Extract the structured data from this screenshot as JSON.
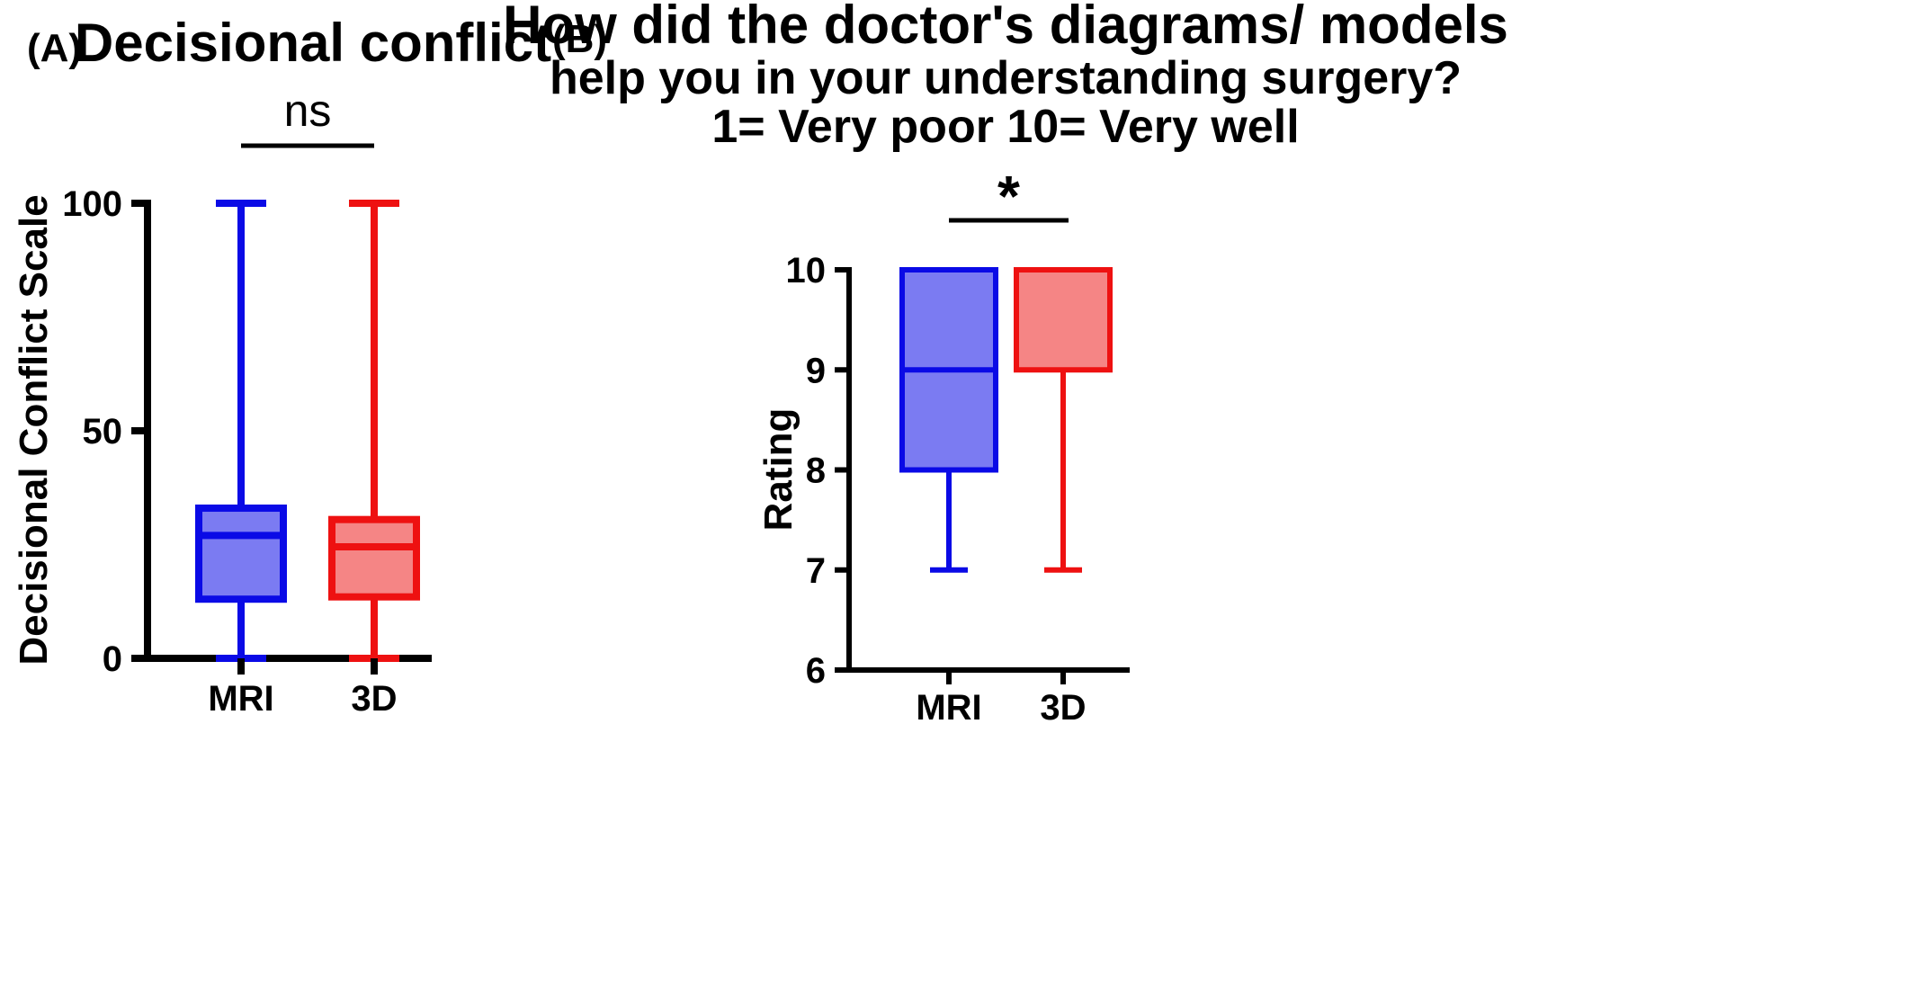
{
  "colors": {
    "mri_stroke": "#0a0ae6",
    "mri_fill": "#7b7bf2",
    "threed_stroke": "#ee1111",
    "threed_fill": "#f58585",
    "axis": "#000000"
  },
  "chart_data": [
    {
      "type": "box",
      "panel_label": "(A)",
      "title": "Decisional conflict",
      "subtitle": [],
      "ylabel": "Decisional Conflict Scale",
      "xlabel": "",
      "categories": [
        "MRI",
        "3D"
      ],
      "ylim": [
        0,
        100
      ],
      "yticks": [
        0,
        50,
        100
      ],
      "ytick_labels": [
        "0",
        "50",
        "100"
      ],
      "boxes": [
        {
          "category": "MRI",
          "min": 0,
          "q1": 13,
          "median": 27,
          "q3": 33,
          "max": 100,
          "color": "mri"
        },
        {
          "category": "3D",
          "min": 0,
          "q1": 13.5,
          "median": 24.5,
          "q3": 30.5,
          "max": 100,
          "color": "threed"
        }
      ],
      "significance": {
        "label": "ns",
        "between": [
          "MRI",
          "3D"
        ]
      },
      "grid": false,
      "legend": "none"
    },
    {
      "type": "box",
      "panel_label": "(B)",
      "title": "How did the doctor's diagrams/ models",
      "subtitle": [
        "help you in your understanding surgery?",
        "1= Very poor 10= Very well"
      ],
      "ylabel": "Rating",
      "xlabel": "",
      "categories": [
        "MRI",
        "3D"
      ],
      "ylim": [
        6,
        10
      ],
      "yticks": [
        6,
        7,
        8,
        9,
        10
      ],
      "ytick_labels": [
        "6",
        "7",
        "8",
        "9",
        "10"
      ],
      "boxes": [
        {
          "category": "MRI",
          "min": 7,
          "q1": 8,
          "median": 9,
          "q3": 10,
          "max": 10,
          "color": "mri"
        },
        {
          "category": "3D",
          "min": 7,
          "q1": 9,
          "median": 10,
          "q3": 10,
          "max": 10,
          "color": "threed"
        }
      ],
      "significance": {
        "label": "*",
        "between": [
          "MRI",
          "3D"
        ]
      },
      "grid": false,
      "legend": "none"
    }
  ]
}
